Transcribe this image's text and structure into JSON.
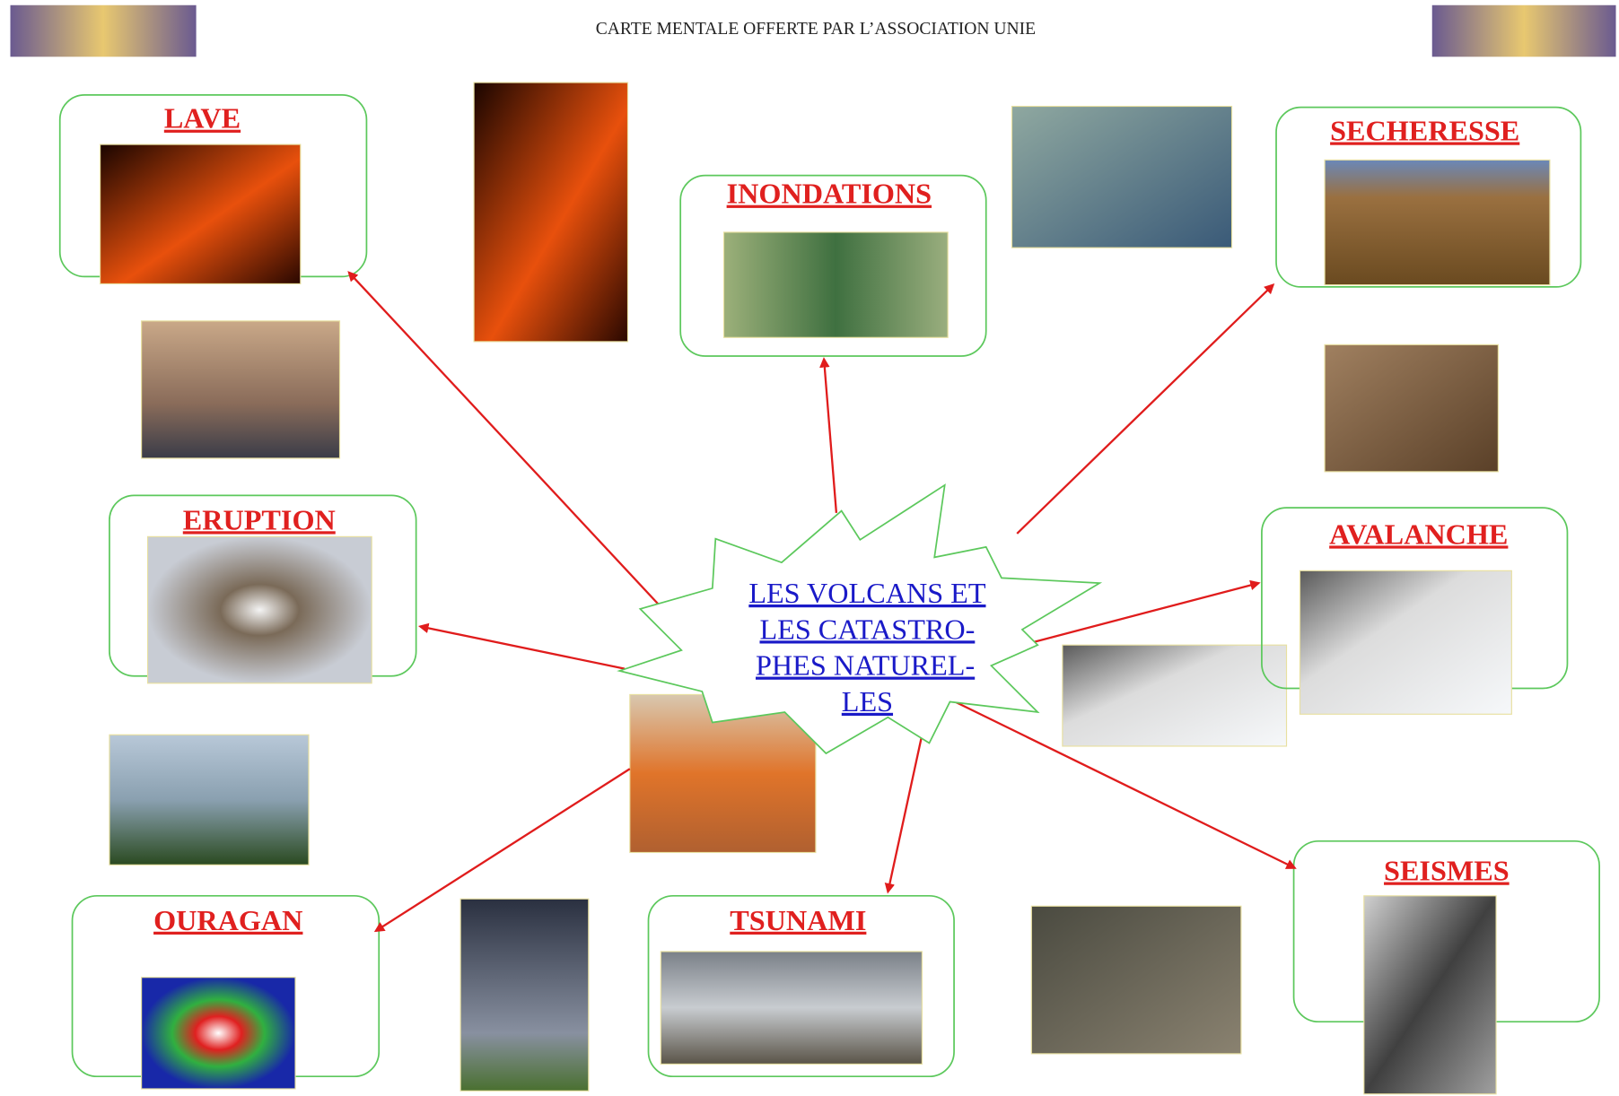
{
  "header": {
    "title": "CARTE MENTALE OFFERTE PAR L’ASSOCIATION UNIE"
  },
  "center": {
    "lines": [
      "LES VOLCANS ET",
      "LES CATASTRO-",
      "PHES NATUREL-",
      "LES"
    ]
  },
  "nodes": [
    {
      "label": "LAVE"
    },
    {
      "label": "INONDATIONS"
    },
    {
      "label": "SECHERESSE"
    },
    {
      "label": "ERUPTION"
    },
    {
      "label": "AVALANCHE"
    },
    {
      "label": "OURAGAN"
    },
    {
      "label": "TSUNAMI"
    },
    {
      "label": "SEISMES"
    }
  ]
}
